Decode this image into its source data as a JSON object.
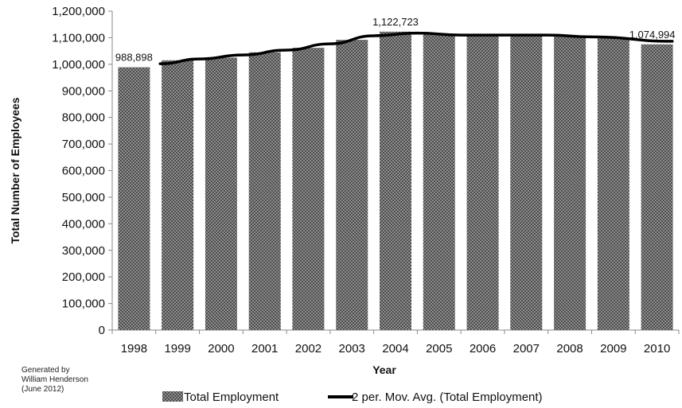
{
  "chart_data": {
    "type": "bar",
    "xlabel": "Year",
    "ylabel": "Total Number of Employees",
    "ylim": [
      0,
      1200000
    ],
    "yticks": [
      "0",
      "100,000",
      "200,000",
      "300,000",
      "400,000",
      "500,000",
      "600,000",
      "700,000",
      "800,000",
      "900,000",
      "1,000,000",
      "1,100,000",
      "1,200,000"
    ],
    "categories": [
      "1998",
      "1999",
      "2000",
      "2001",
      "2002",
      "2003",
      "2004",
      "2005",
      "2006",
      "2007",
      "2008",
      "2009",
      "2010"
    ],
    "series": [
      {
        "name": "Total Employment",
        "type": "bar",
        "pattern": "crosshatch",
        "values": [
          988898,
          1015000,
          1025000,
          1045000,
          1062000,
          1092000,
          1122723,
          1112000,
          1108000,
          1112000,
          1108000,
          1098000,
          1074994
        ]
      },
      {
        "name": "2 per. Mov. Avg. (Total Employment)",
        "type": "line",
        "color": "#000000",
        "values": [
          null,
          1001949,
          1020000,
          1035000,
          1053500,
          1077000,
          1107362,
          1117362,
          1110000,
          1110000,
          1110000,
          1103000,
          1086497
        ]
      }
    ],
    "data_labels": [
      {
        "index": 0,
        "text": "988,898"
      },
      {
        "index": 6,
        "text": "1,122,723"
      },
      {
        "index": 12,
        "text": "1,074,994"
      }
    ],
    "grid": false,
    "legend_position": "bottom",
    "credit": [
      "Generated by",
      "William Henderson",
      "(June 2012)"
    ]
  }
}
